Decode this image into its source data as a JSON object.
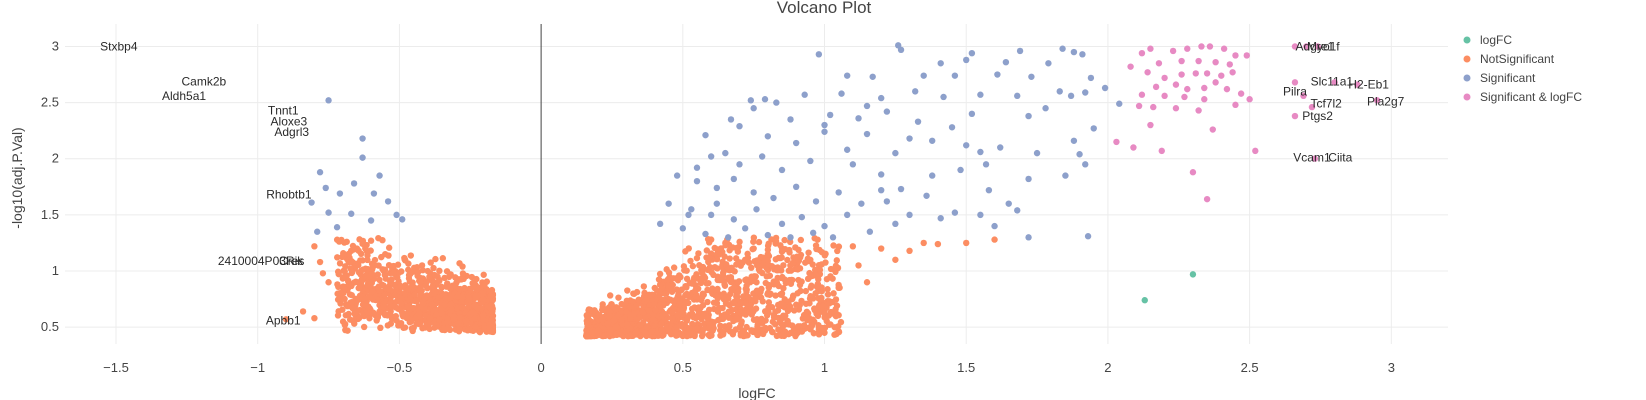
{
  "chart_data": {
    "type": "scatter",
    "title": "Volcano Plot",
    "xlabel": "logFC",
    "ylabel": "-log10(adj.P.Val)",
    "xlim": [
      -1.68,
      3.2
    ],
    "ylim": [
      0.35,
      3.2
    ],
    "x_ticks": [
      -1.5,
      -1,
      -0.5,
      0,
      0.5,
      1,
      1.5,
      2,
      2.5,
      3
    ],
    "y_ticks": [
      0.5,
      1,
      1.5,
      2,
      2.5,
      3
    ],
    "x_tick_labels": [
      "−1.5",
      "−1",
      "−0.5",
      "0",
      "0.5",
      "1",
      "1.5",
      "2",
      "2.5",
      "3"
    ],
    "y_tick_labels": [
      "0.5",
      "1",
      "1.5",
      "2",
      "2.5",
      "3"
    ],
    "grid": true,
    "zero_line_x": 0,
    "legend_position": "right",
    "series": [
      {
        "name": "logFC",
        "color": "#66c2a5",
        "points": [
          [
            2.3,
            0.97
          ],
          [
            2.13,
            0.74
          ]
        ]
      },
      {
        "name": "NotSignificant",
        "color": "#fc8d62",
        "count": 2600,
        "points": [
          [
            -0.6,
            1.27
          ],
          [
            -0.65,
            1.2
          ],
          [
            -0.55,
            1.15
          ],
          [
            -0.8,
            1.22
          ],
          [
            -0.78,
            1.08
          ],
          [
            -0.77,
            0.98
          ],
          [
            -0.75,
            0.9
          ],
          [
            -0.84,
            0.64
          ],
          [
            -0.8,
            0.58
          ],
          [
            -0.9,
            0.57
          ],
          [
            -0.7,
            0.85
          ],
          [
            -0.62,
            0.75
          ],
          [
            -0.48,
            1.1
          ],
          [
            -0.42,
            1.05
          ],
          [
            -0.4,
            1.0
          ],
          [
            0.6,
            1.28
          ],
          [
            0.65,
            1.25
          ],
          [
            0.75,
            1.2
          ],
          [
            0.72,
            1.1
          ],
          [
            0.8,
            1.15
          ],
          [
            0.85,
            1.2
          ],
          [
            0.9,
            1.05
          ],
          [
            0.95,
            1.1
          ],
          [
            1.1,
            1.22
          ],
          [
            1.2,
            1.2
          ],
          [
            1.3,
            1.18
          ],
          [
            1.35,
            1.25
          ],
          [
            1.4,
            1.24
          ],
          [
            1.5,
            1.25
          ],
          [
            1.6,
            1.28
          ],
          [
            1.0,
            0.45
          ],
          [
            0.98,
            0.5
          ],
          [
            0.9,
            0.7
          ],
          [
            0.85,
            0.8
          ],
          [
            1.05,
            0.85
          ],
          [
            1.12,
            1.05
          ],
          [
            1.25,
            1.1
          ],
          [
            0.7,
            0.6
          ],
          [
            0.6,
            0.55
          ],
          [
            1.15,
            0.9
          ]
        ]
      },
      {
        "name": "Significant",
        "color": "#8da0cb",
        "points": [
          [
            -0.75,
            2.52
          ],
          [
            -0.63,
            2.18
          ],
          [
            -0.63,
            2.01
          ],
          [
            -0.78,
            1.88
          ],
          [
            -0.57,
            1.85
          ],
          [
            -0.66,
            1.78
          ],
          [
            -0.59,
            1.69
          ],
          [
            -0.71,
            1.69
          ],
          [
            -0.54,
            1.62
          ],
          [
            -0.81,
            1.61
          ],
          [
            -0.75,
            1.52
          ],
          [
            -0.67,
            1.51
          ],
          [
            -0.51,
            1.5
          ],
          [
            -0.49,
            1.46
          ],
          [
            -0.72,
            1.39
          ],
          [
            -0.79,
            1.35
          ],
          [
            -0.6,
            1.45
          ],
          [
            -0.76,
            1.74
          ],
          [
            1.26,
            3.01
          ],
          [
            1.27,
            2.97
          ],
          [
            0.98,
            2.93
          ],
          [
            1.52,
            2.94
          ],
          [
            1.69,
            2.96
          ],
          [
            1.84,
            2.98
          ],
          [
            1.88,
            2.95
          ],
          [
            1.91,
            2.93
          ],
          [
            1.5,
            2.88
          ],
          [
            1.41,
            2.85
          ],
          [
            1.64,
            2.86
          ],
          [
            1.79,
            2.85
          ],
          [
            1.08,
            2.74
          ],
          [
            1.35,
            2.74
          ],
          [
            1.17,
            2.73
          ],
          [
            1.46,
            2.74
          ],
          [
            1.61,
            2.75
          ],
          [
            1.73,
            2.73
          ],
          [
            1.94,
            2.72
          ],
          [
            1.99,
            2.63
          ],
          [
            0.74,
            2.52
          ],
          [
            0.79,
            2.53
          ],
          [
            0.83,
            2.5
          ],
          [
            0.75,
            2.45
          ],
          [
            0.93,
            2.57
          ],
          [
            1.06,
            2.58
          ],
          [
            1.2,
            2.54
          ],
          [
            1.32,
            2.6
          ],
          [
            1.42,
            2.55
          ],
          [
            1.55,
            2.57
          ],
          [
            1.68,
            2.56
          ],
          [
            1.87,
            2.56
          ],
          [
            1.83,
            2.6
          ],
          [
            1.92,
            2.59
          ],
          [
            2.04,
            2.49
          ],
          [
            1.15,
            2.47
          ],
          [
            1.02,
            2.39
          ],
          [
            1.22,
            2.42
          ],
          [
            1.33,
            2.33
          ],
          [
            1.52,
            2.4
          ],
          [
            1.72,
            2.38
          ],
          [
            1.78,
            2.45
          ],
          [
            0.67,
            2.35
          ],
          [
            0.7,
            2.29
          ],
          [
            0.58,
            2.21
          ],
          [
            0.8,
            2.2
          ],
          [
            0.9,
            2.14
          ],
          [
            1.0,
            2.24
          ],
          [
            1.08,
            2.08
          ],
          [
            1.15,
            2.22
          ],
          [
            1.3,
            2.18
          ],
          [
            1.38,
            2.16
          ],
          [
            1.45,
            2.28
          ],
          [
            1.55,
            2.06
          ],
          [
            1.62,
            2.1
          ],
          [
            1.88,
            2.16
          ],
          [
            1.9,
            2.04
          ],
          [
            1.92,
            1.95
          ],
          [
            0.6,
            2.02
          ],
          [
            0.7,
            1.95
          ],
          [
            0.78,
            2.02
          ],
          [
            0.85,
            1.9
          ],
          [
            0.95,
            1.98
          ],
          [
            1.1,
            1.95
          ],
          [
            1.2,
            1.86
          ],
          [
            1.27,
            1.73
          ],
          [
            1.38,
            1.85
          ],
          [
            1.48,
            1.9
          ],
          [
            1.57,
            1.95
          ],
          [
            1.72,
            1.82
          ],
          [
            0.48,
            1.85
          ],
          [
            0.55,
            1.8
          ],
          [
            0.62,
            1.74
          ],
          [
            0.68,
            1.82
          ],
          [
            0.75,
            1.7
          ],
          [
            0.82,
            1.65
          ],
          [
            0.9,
            1.75
          ],
          [
            0.97,
            1.62
          ],
          [
            1.05,
            1.7
          ],
          [
            1.13,
            1.6
          ],
          [
            1.22,
            1.62
          ],
          [
            1.36,
            1.67
          ],
          [
            1.46,
            1.52
          ],
          [
            1.55,
            1.5
          ],
          [
            1.68,
            1.54
          ],
          [
            0.45,
            1.6
          ],
          [
            0.53,
            1.55
          ],
          [
            0.6,
            1.5
          ],
          [
            0.68,
            1.46
          ],
          [
            0.76,
            1.55
          ],
          [
            0.85,
            1.42
          ],
          [
            0.92,
            1.48
          ],
          [
            1.0,
            1.4
          ],
          [
            1.08,
            1.5
          ],
          [
            1.16,
            1.35
          ],
          [
            1.25,
            1.42
          ],
          [
            0.42,
            1.42
          ],
          [
            0.5,
            1.38
          ],
          [
            0.58,
            1.33
          ],
          [
            0.66,
            1.3
          ],
          [
            0.72,
            1.38
          ],
          [
            0.8,
            1.32
          ],
          [
            0.88,
            1.3
          ],
          [
            0.96,
            1.34
          ],
          [
            1.03,
            1.3
          ],
          [
            1.72,
            1.3
          ],
          [
            1.93,
            1.31
          ],
          [
            1.2,
            1.72
          ],
          [
            1.3,
            1.5
          ],
          [
            1.41,
            1.47
          ],
          [
            1.6,
            1.4
          ],
          [
            1.65,
            1.6
          ],
          [
            0.65,
            2.05
          ],
          [
            0.55,
            1.92
          ],
          [
            1.25,
            2.05
          ],
          [
            1.5,
            2.12
          ],
          [
            1.58,
            1.72
          ],
          [
            0.88,
            2.35
          ],
          [
            1.0,
            2.3
          ],
          [
            1.12,
            2.36
          ],
          [
            1.75,
            2.05
          ],
          [
            1.85,
            1.85
          ],
          [
            1.95,
            2.27
          ],
          [
            0.52,
            1.5
          ],
          [
            0.62,
            1.6
          ]
        ]
      },
      {
        "name": "Significant & logFC",
        "color": "#e78ac3",
        "points": [
          [
            2.12,
            2.94
          ],
          [
            2.15,
            2.98
          ],
          [
            2.23,
            2.96
          ],
          [
            2.28,
            2.98
          ],
          [
            2.33,
            3.0
          ],
          [
            2.36,
            3.0
          ],
          [
            2.41,
            2.98
          ],
          [
            2.45,
            2.92
          ],
          [
            2.49,
            2.92
          ],
          [
            2.08,
            2.82
          ],
          [
            2.18,
            2.85
          ],
          [
            2.26,
            2.87
          ],
          [
            2.32,
            2.87
          ],
          [
            2.38,
            2.86
          ],
          [
            2.43,
            2.84
          ],
          [
            2.14,
            2.77
          ],
          [
            2.2,
            2.72
          ],
          [
            2.26,
            2.75
          ],
          [
            2.31,
            2.76
          ],
          [
            2.35,
            2.76
          ],
          [
            2.4,
            2.74
          ],
          [
            2.44,
            2.77
          ],
          [
            2.17,
            2.64
          ],
          [
            2.24,
            2.66
          ],
          [
            2.28,
            2.62
          ],
          [
            2.34,
            2.63
          ],
          [
            2.38,
            2.68
          ],
          [
            2.42,
            2.62
          ],
          [
            2.47,
            2.58
          ],
          [
            2.12,
            2.57
          ],
          [
            2.2,
            2.56
          ],
          [
            2.27,
            2.55
          ],
          [
            2.34,
            2.53
          ],
          [
            2.45,
            2.48
          ],
          [
            2.5,
            2.53
          ],
          [
            2.11,
            2.47
          ],
          [
            2.16,
            2.46
          ],
          [
            2.24,
            2.45
          ],
          [
            2.32,
            2.43
          ],
          [
            2.15,
            2.3
          ],
          [
            2.03,
            2.15
          ],
          [
            2.09,
            2.1
          ],
          [
            2.19,
            2.07
          ],
          [
            2.37,
            2.26
          ],
          [
            2.52,
            2.07
          ],
          [
            2.3,
            1.88
          ],
          [
            2.35,
            1.64
          ],
          [
            2.66,
            3.0
          ],
          [
            2.7,
            3.0
          ],
          [
            2.74,
            3.0
          ],
          [
            2.66,
            2.68
          ],
          [
            2.69,
            2.56
          ],
          [
            2.72,
            2.46
          ],
          [
            2.66,
            2.38
          ],
          [
            2.73,
            2.0
          ],
          [
            2.88,
            2.66
          ],
          [
            2.95,
            2.52
          ],
          [
            2.8,
            2.68
          ]
        ]
      }
    ],
    "annotations": [
      {
        "text": "Stxbp4",
        "x": -1.49,
        "y": 3.0
      },
      {
        "text": "Camk2b",
        "x": -1.19,
        "y": 2.69
      },
      {
        "text": "Aldh5a1",
        "x": -1.26,
        "y": 2.56
      },
      {
        "text": "Tnnt1",
        "x": -0.91,
        "y": 2.43
      },
      {
        "text": "Aloxe3",
        "x": -0.89,
        "y": 2.33
      },
      {
        "text": "Adgrl3",
        "x": -0.88,
        "y": 2.24
      },
      {
        "text": "Rhobtb1",
        "x": -0.89,
        "y": 1.68
      },
      {
        "text": "2410004P03Rik",
        "x": -0.99,
        "y": 1.09
      },
      {
        "text": "Cres",
        "x": -0.88,
        "y": 1.09
      },
      {
        "text": "Apbb1",
        "x": -0.91,
        "y": 0.56
      },
      {
        "text": "Adgre1",
        "x": 2.73,
        "y": 3.0
      },
      {
        "text": "Myo1f",
        "x": 2.76,
        "y": 3.0
      },
      {
        "text": "Slc11a1",
        "x": 2.79,
        "y": 2.69
      },
      {
        "text": "H2-Eb1",
        "x": 2.92,
        "y": 2.66
      },
      {
        "text": "Pilra",
        "x": 2.66,
        "y": 2.6
      },
      {
        "text": "Tcf7l2",
        "x": 2.77,
        "y": 2.49
      },
      {
        "text": "Pla2g7",
        "x": 2.98,
        "y": 2.51
      },
      {
        "text": "Ptgs2",
        "x": 2.74,
        "y": 2.38
      },
      {
        "text": "Vcam1",
        "x": 2.72,
        "y": 2.01
      },
      {
        "text": "Ciita",
        "x": 2.82,
        "y": 2.01
      }
    ]
  }
}
